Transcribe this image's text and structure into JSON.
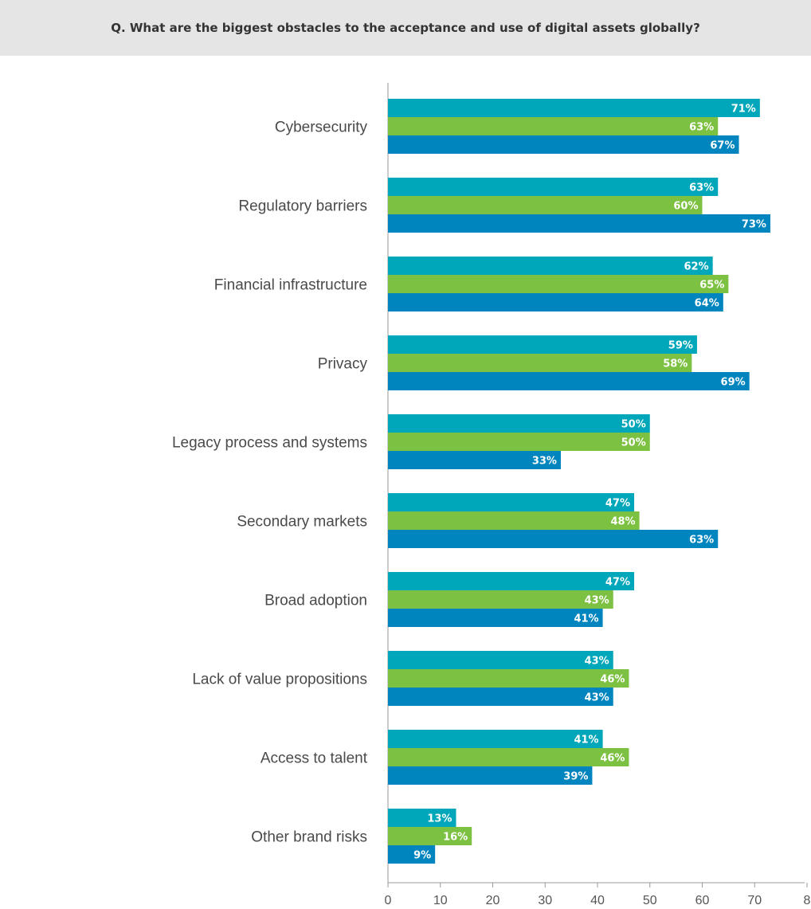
{
  "header": {
    "question": "Q. What are the biggest obstacles to the acceptance and use of digital assets globally?"
  },
  "colors": {
    "banner_bg": "#e5e5e5",
    "series": [
      "#00a6b9",
      "#7dc142",
      "#0085be"
    ],
    "axis": "#999999"
  },
  "chart_data": {
    "type": "bar",
    "orientation": "horizontal",
    "title": "",
    "xlabel": "",
    "ylabel": "",
    "xlim": [
      0,
      80
    ],
    "grid": false,
    "categories": [
      "Cybersecurity",
      "Regulatory barriers",
      "Financial infrastructure",
      "Privacy",
      "Legacy process and systems",
      "Secondary markets",
      "Broad adoption",
      "Lack of value propositions",
      "Access to talent",
      "Other brand risks"
    ],
    "series": [
      {
        "values": [
          71,
          63,
          62,
          59,
          50,
          47,
          47,
          43,
          41,
          13
        ]
      },
      {
        "values": [
          63,
          60,
          65,
          58,
          50,
          48,
          43,
          46,
          46,
          16
        ]
      },
      {
        "values": [
          67,
          73,
          64,
          69,
          33,
          63,
          41,
          43,
          39,
          9
        ]
      }
    ],
    "value_suffix": "%",
    "x_ticks": [
      "0",
      "10",
      "20",
      "30",
      "40",
      "50",
      "60",
      "70",
      "8"
    ]
  }
}
